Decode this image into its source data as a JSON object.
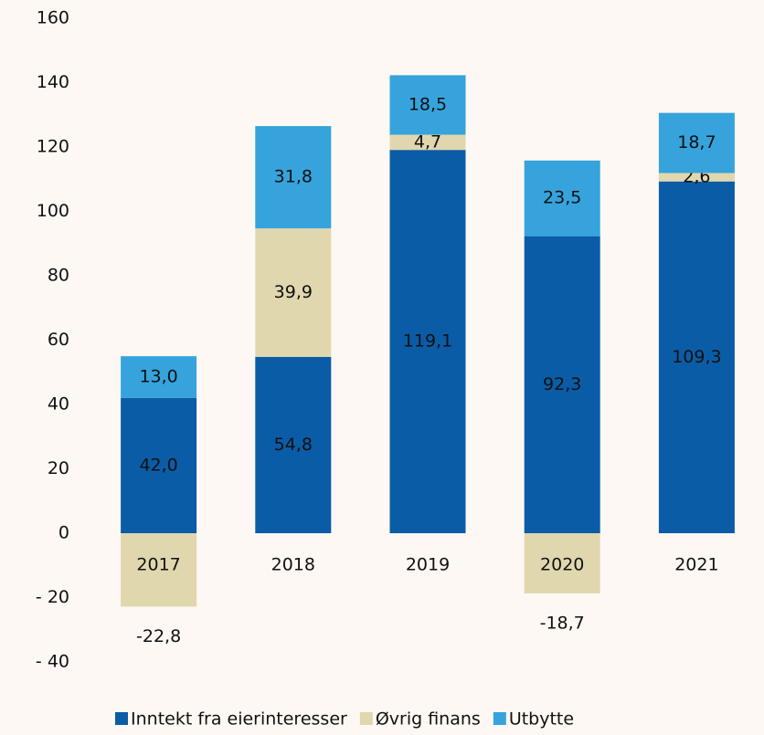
{
  "chart_data": {
    "type": "stacked_bar",
    "categories": [
      "2017",
      "2018",
      "2019",
      "2020",
      "2021"
    ],
    "series": [
      {
        "name": "Inntekt fra eierinteresser",
        "color": "#0b5ca6",
        "values": [
          42.0,
          54.8,
          119.1,
          92.3,
          109.3
        ],
        "value_labels": [
          "42,0",
          "54,8",
          "119,1",
          "92,3",
          "109,3"
        ]
      },
      {
        "name": "Øvrig finans",
        "color": "#e1d7ae",
        "values": [
          -22.8,
          39.9,
          4.7,
          -18.7,
          2.6
        ],
        "value_labels": [
          "-22,8",
          "39,9",
          "4,7",
          "-18,7",
          "2,6"
        ]
      },
      {
        "name": "Utbytte",
        "color": "#36a3dc",
        "values": [
          13.0,
          31.8,
          18.5,
          23.5,
          18.7
        ],
        "value_labels": [
          "13,0",
          "31,8",
          "18,5",
          "23,5",
          "18,7"
        ]
      }
    ],
    "ylim": [
      -40,
      160
    ],
    "yticks": [
      {
        "value": -40,
        "label": "- 40"
      },
      {
        "value": -20,
        "label": "- 20"
      },
      0,
      20,
      40,
      60,
      80,
      100,
      120,
      140,
      160
    ],
    "legend": "bottom"
  }
}
